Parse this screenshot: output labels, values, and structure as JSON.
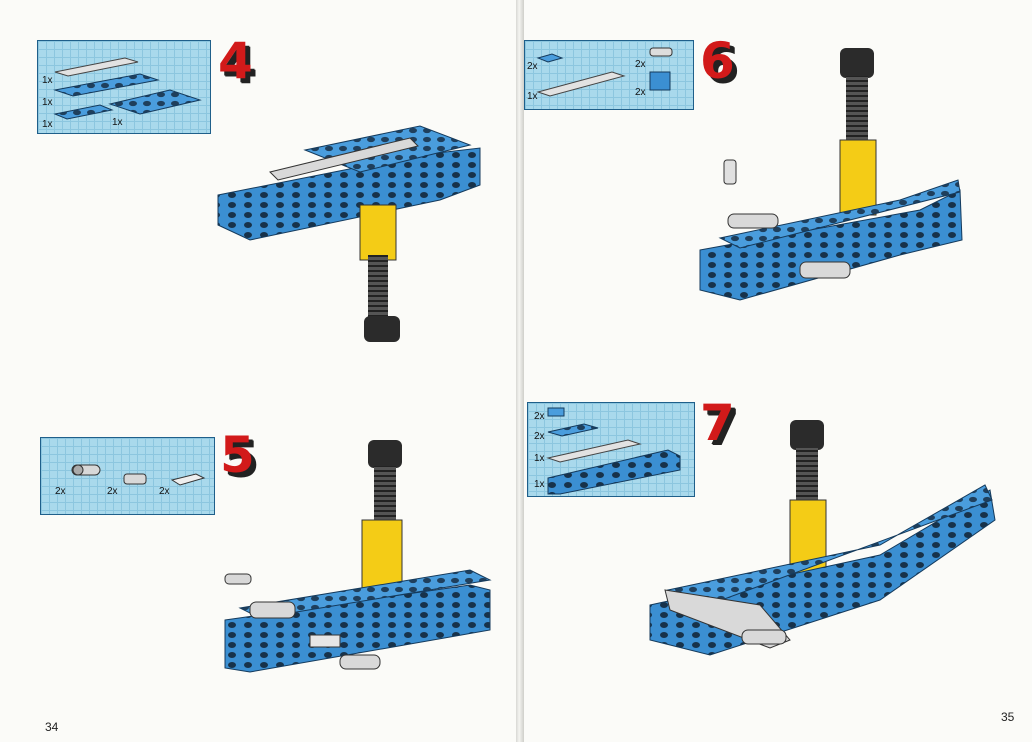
{
  "pages": {
    "left": {
      "number": "34"
    },
    "right": {
      "number": "35"
    }
  },
  "steps": [
    {
      "number": "4",
      "parts": [
        "1x",
        "1x",
        "1x",
        "1x"
      ]
    },
    {
      "number": "5",
      "parts": [
        "2x",
        "2x",
        "2x"
      ]
    },
    {
      "number": "6",
      "parts": [
        "2x",
        "2x",
        "1x",
        "2x"
      ]
    },
    {
      "number": "7",
      "parts": [
        "2x",
        "2x",
        "1x",
        "1x"
      ]
    }
  ],
  "colors": {
    "brick_blue": "#3b8fd2",
    "yellow": "#f4cc16",
    "black": "#2b2b2b",
    "grey": "#cfcfcf",
    "grid": "#a9d9ec",
    "step_red": "#d21a1a"
  }
}
